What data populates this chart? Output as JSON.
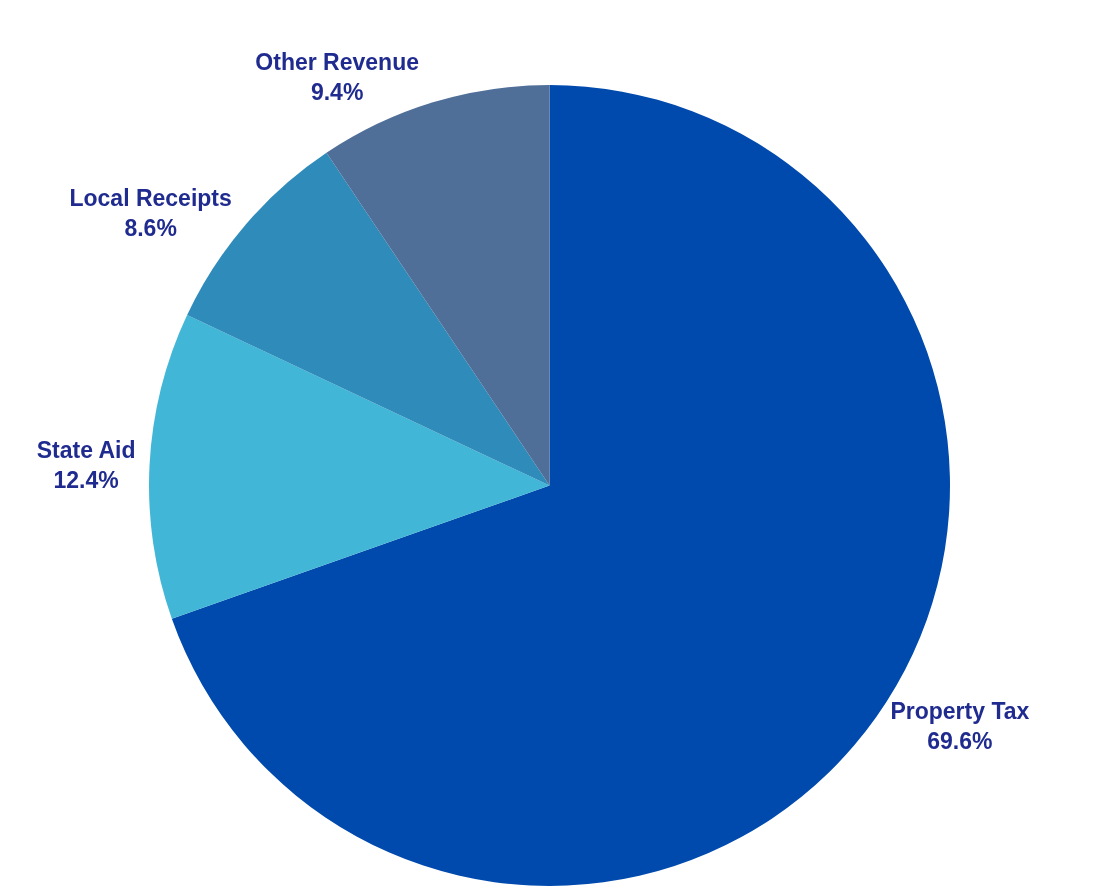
{
  "chart_data": {
    "type": "pie",
    "categories": [
      "Property Tax",
      "State Aid",
      "Local Receipts",
      "Other Revenue"
    ],
    "values": [
      69.6,
      12.4,
      8.6,
      9.4
    ],
    "value_labels": [
      "69.6%",
      "12.4%",
      "8.6%",
      "9.4%"
    ],
    "colors": [
      "#004aad",
      "#41b6d6",
      "#2e8bba",
      "#4f6e98"
    ],
    "legend": false
  }
}
